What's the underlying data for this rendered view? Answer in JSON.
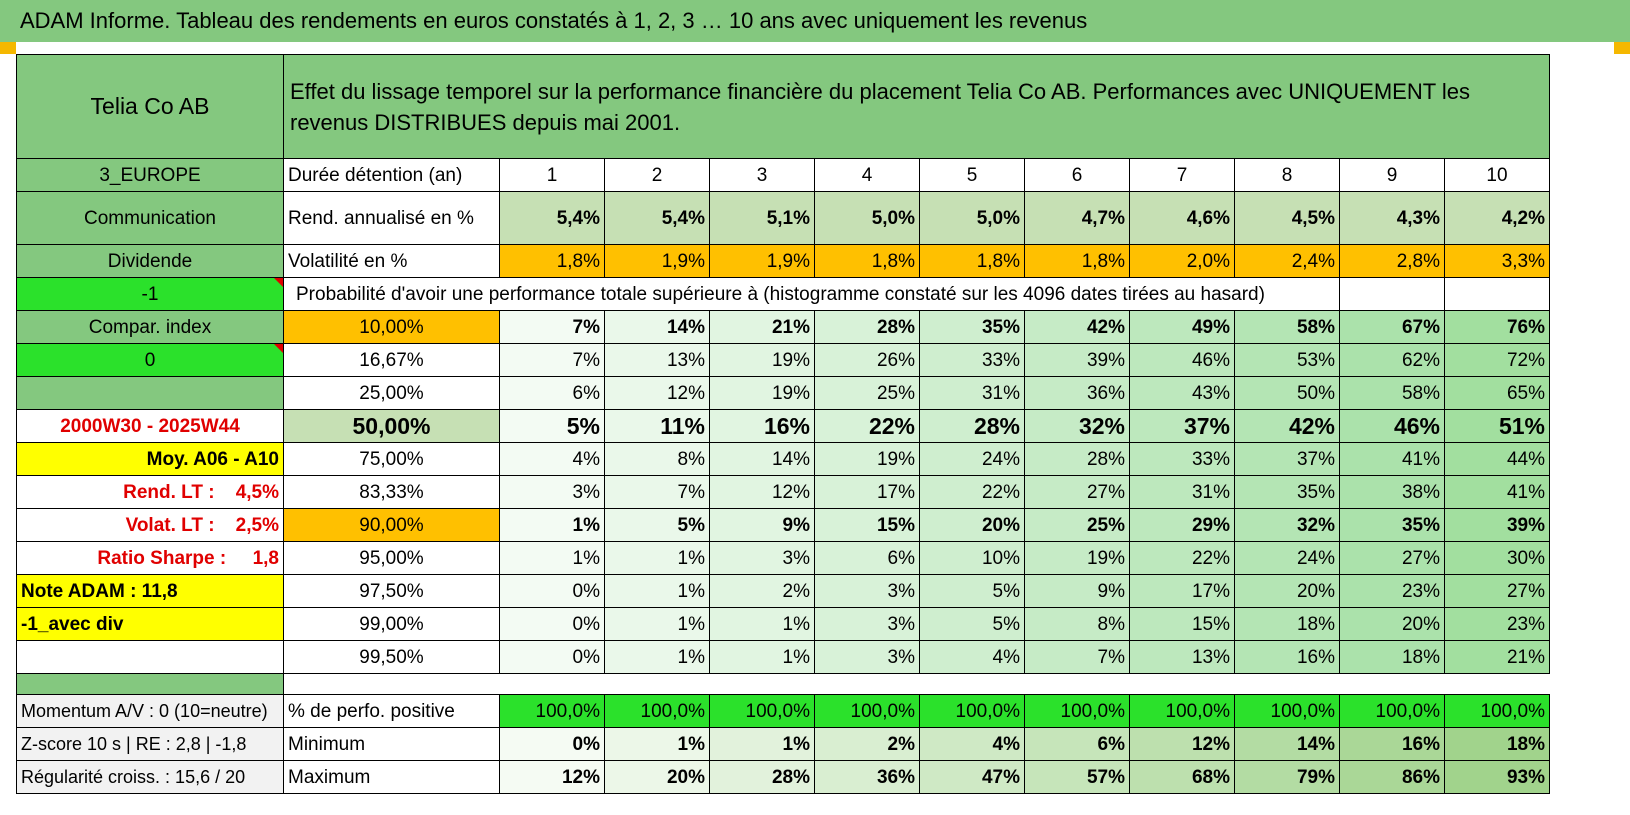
{
  "title": "ADAM Informe. Tableau des rendements en euros constatés à 1, 2, 3 … 10 ans avec uniquement les revenus",
  "colors": {
    "header_green": "#84c87f",
    "light_green": "#c6e0b4",
    "orange": "#ffc000",
    "bright_green": "#2be12b",
    "yellow": "#ffff00",
    "red_text": "#e00000"
  },
  "left": {
    "name": "Telia Co AB",
    "region": "3_EUROPE",
    "sector": "Communication",
    "type": "Dividende",
    "param1": "-1",
    "compar_index": "Compar. index",
    "param2": "0",
    "period": "2000W30 - 2025W44",
    "moy": "Moy. A06 - A10",
    "rend_lt": "Rend. LT :    4,5%",
    "volat_lt": "Volat. LT :    2,5%",
    "sharpe": "Ratio Sharpe :     1,8",
    "note": "Note ADAM : 11,8",
    "avec_div": "-1_avec div",
    "momentum": "Momentum A/V : 0 (10=neutre)",
    "zscore": "Z-score 10 s | RE : 2,8 | -1,8",
    "regularite": "Régularité croiss. : 15,6 / 20"
  },
  "description": "Effet du lissage temporel sur la performance financière du placement Telia Co AB. Performances avec UNIQUEMENT les revenus DISTRIBUES depuis mai 2001.",
  "labels": {
    "duree": "Durée détention (an)",
    "rend": "Rend. annualisé en %",
    "vol": "Volatilité en %",
    "proba": "Probabilité d'avoir une performance totale supérieure à (histogramme constaté sur les 4096 dates tirées au hasard)",
    "positive": "% de perfo. positive",
    "minimum": "Minimum",
    "maximum": "Maximum"
  },
  "years": [
    "1",
    "2",
    "3",
    "4",
    "5",
    "6",
    "7",
    "8",
    "9",
    "10"
  ],
  "rend": [
    "5,4%",
    "5,4%",
    "5,1%",
    "5,0%",
    "5,0%",
    "4,7%",
    "4,6%",
    "4,5%",
    "4,3%",
    "4,2%"
  ],
  "vol": [
    "1,8%",
    "1,9%",
    "1,9%",
    "1,8%",
    "1,8%",
    "1,8%",
    "2,0%",
    "2,4%",
    "2,8%",
    "3,3%"
  ],
  "prob_rows": [
    {
      "threshold": "10,00%",
      "values": [
        "7%",
        "14%",
        "21%",
        "28%",
        "35%",
        "42%",
        "49%",
        "58%",
        "67%",
        "76%"
      ]
    },
    {
      "threshold": "16,67%",
      "values": [
        "7%",
        "13%",
        "19%",
        "26%",
        "33%",
        "39%",
        "46%",
        "53%",
        "62%",
        "72%"
      ]
    },
    {
      "threshold": "25,00%",
      "values": [
        "6%",
        "12%",
        "19%",
        "25%",
        "31%",
        "36%",
        "43%",
        "50%",
        "58%",
        "65%"
      ]
    },
    {
      "threshold": "50,00%",
      "values": [
        "5%",
        "11%",
        "16%",
        "22%",
        "28%",
        "32%",
        "37%",
        "42%",
        "46%",
        "51%"
      ]
    },
    {
      "threshold": "75,00%",
      "values": [
        "4%",
        "8%",
        "14%",
        "19%",
        "24%",
        "28%",
        "33%",
        "37%",
        "41%",
        "44%"
      ]
    },
    {
      "threshold": "83,33%",
      "values": [
        "3%",
        "7%",
        "12%",
        "17%",
        "22%",
        "27%",
        "31%",
        "35%",
        "38%",
        "41%"
      ]
    },
    {
      "threshold": "90,00%",
      "values": [
        "1%",
        "5%",
        "9%",
        "15%",
        "20%",
        "25%",
        "29%",
        "32%",
        "35%",
        "39%"
      ]
    },
    {
      "threshold": "95,00%",
      "values": [
        "1%",
        "1%",
        "3%",
        "6%",
        "10%",
        "19%",
        "22%",
        "24%",
        "27%",
        "30%"
      ]
    },
    {
      "threshold": "97,50%",
      "values": [
        "0%",
        "1%",
        "2%",
        "3%",
        "5%",
        "9%",
        "17%",
        "20%",
        "23%",
        "27%"
      ]
    },
    {
      "threshold": "99,00%",
      "values": [
        "0%",
        "1%",
        "1%",
        "3%",
        "5%",
        "8%",
        "15%",
        "18%",
        "20%",
        "23%"
      ]
    },
    {
      "threshold": "99,50%",
      "values": [
        "0%",
        "1%",
        "1%",
        "3%",
        "4%",
        "7%",
        "13%",
        "16%",
        "18%",
        "21%"
      ]
    }
  ],
  "positive": [
    "100,0%",
    "100,0%",
    "100,0%",
    "100,0%",
    "100,0%",
    "100,0%",
    "100,0%",
    "100,0%",
    "100,0%",
    "100,0%"
  ],
  "minimum": [
    "0%",
    "1%",
    "1%",
    "2%",
    "4%",
    "6%",
    "12%",
    "14%",
    "16%",
    "18%"
  ],
  "maximum": [
    "12%",
    "20%",
    "28%",
    "36%",
    "47%",
    "57%",
    "68%",
    "79%",
    "86%",
    "93%"
  ]
}
